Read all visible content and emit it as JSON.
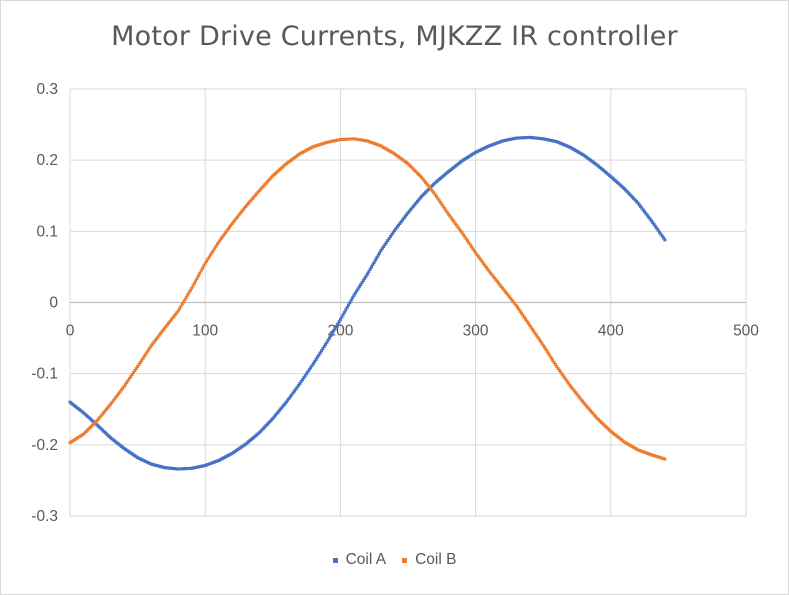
{
  "chart_data": {
    "type": "scatter",
    "title": "Motor Drive Currents, MJKZZ IR controller",
    "xlabel": "",
    "ylabel": "",
    "xlim": [
      0,
      500
    ],
    "ylim": [
      -0.3,
      0.3
    ],
    "x_ticks": [
      "0",
      "100",
      "200",
      "300",
      "400",
      "500"
    ],
    "y_ticks": [
      "0.3",
      "0.2",
      "0.1",
      "0",
      "-0.1",
      "-0.2",
      "-0.3"
    ],
    "grid": true,
    "legend_position": "bottom",
    "series": [
      {
        "name": "Coil A",
        "color": "#4472c4",
        "x": [
          0,
          10,
          20,
          30,
          40,
          50,
          60,
          70,
          80,
          90,
          100,
          110,
          120,
          130,
          140,
          150,
          160,
          170,
          180,
          190,
          200,
          210,
          220,
          230,
          240,
          250,
          260,
          270,
          280,
          290,
          300,
          310,
          320,
          330,
          340,
          350,
          360,
          370,
          380,
          390,
          400,
          410,
          420,
          430,
          440
        ],
        "values": [
          -0.14,
          -0.155,
          -0.172,
          -0.19,
          -0.205,
          -0.218,
          -0.227,
          -0.232,
          -0.234,
          -0.233,
          -0.229,
          -0.222,
          -0.212,
          -0.199,
          -0.183,
          -0.163,
          -0.14,
          -0.114,
          -0.086,
          -0.056,
          -0.024,
          0.01,
          0.04,
          0.073,
          0.101,
          0.126,
          0.149,
          0.168,
          0.184,
          0.199,
          0.211,
          0.22,
          0.227,
          0.231,
          0.232,
          0.23,
          0.226,
          0.218,
          0.207,
          0.193,
          0.177,
          0.16,
          0.14,
          0.115,
          0.088
        ]
      },
      {
        "name": "Coil B",
        "color": "#ed7d31",
        "x": [
          0,
          10,
          20,
          30,
          40,
          50,
          60,
          70,
          80,
          90,
          100,
          110,
          120,
          130,
          140,
          150,
          160,
          170,
          180,
          190,
          200,
          210,
          220,
          230,
          240,
          250,
          260,
          270,
          280,
          290,
          300,
          310,
          320,
          330,
          340,
          350,
          360,
          370,
          380,
          390,
          400,
          410,
          420,
          430,
          440
        ],
        "values": [
          -0.197,
          -0.185,
          -0.166,
          -0.143,
          -0.118,
          -0.09,
          -0.061,
          -0.036,
          -0.012,
          0.02,
          0.055,
          0.085,
          0.111,
          0.135,
          0.157,
          0.178,
          0.195,
          0.209,
          0.219,
          0.225,
          0.229,
          0.23,
          0.227,
          0.22,
          0.209,
          0.195,
          0.176,
          0.152,
          0.124,
          0.098,
          0.07,
          0.044,
          0.02,
          -0.004,
          -0.032,
          -0.06,
          -0.09,
          -0.117,
          -0.141,
          -0.163,
          -0.181,
          -0.196,
          -0.207,
          -0.214,
          -0.22
        ]
      }
    ]
  }
}
